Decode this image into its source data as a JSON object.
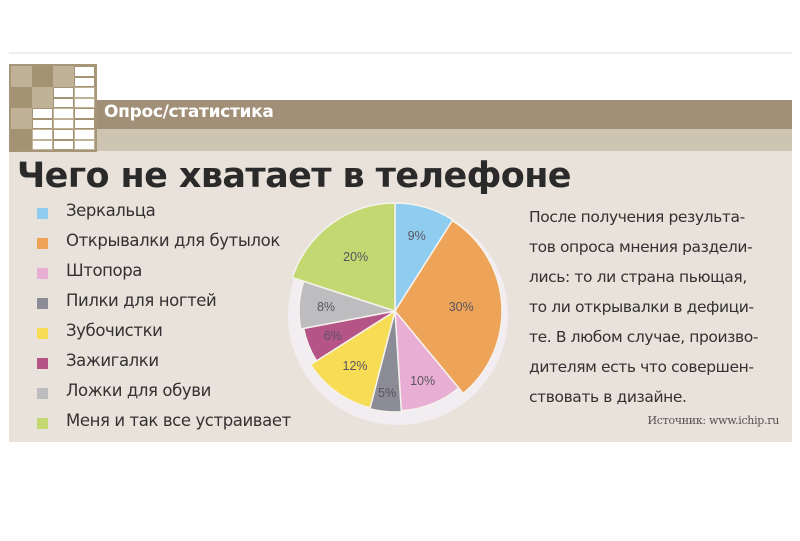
{
  "header": {
    "section_label": "Опрос/статистика",
    "title": "Чего не хватает в телефоне"
  },
  "colors": {
    "band_dark": "#a19077",
    "band_light": "#cdc4b2",
    "panel_bg": "#e8e2da",
    "logo_bg": "#a69677"
  },
  "legend": [
    {
      "label": "Зеркальца",
      "color": "#8fcdf0"
    },
    {
      "label": "Открывалки для бутылок",
      "color": "#eda458"
    },
    {
      "label": "Штопора",
      "color": "#e8aed4"
    },
    {
      "label": "Пилки для ногтей",
      "color": "#8b8c96"
    },
    {
      "label": "Зубочистки",
      "color": "#f7dc55"
    },
    {
      "label": "Зажигалки",
      "color": "#b55486"
    },
    {
      "label": "Ложки для обуви",
      "color": "#bdbdbf"
    },
    {
      "label": "Меня и так все устраивает",
      "color": "#c3d871"
    }
  ],
  "note": {
    "lines": [
      "После получения результа-",
      "тов опроса мнения раздели-",
      "лись: то ли страна пьющая,",
      "то ли открывалки в дефици-",
      "те. В любом случае, произво-",
      "дителям есть что совершен-",
      "ствовать в дизайне."
    ]
  },
  "source": "Источник: www.ichip.ru",
  "chart_data": {
    "type": "pie",
    "title": "Чего не хватает в телефоне",
    "categories": [
      "Зеркальца",
      "Открывалки для бутылок",
      "Штопора",
      "Пилки для ногтей",
      "Зубочистки",
      "Зажигалки",
      "Ложки для обуви",
      "Меня и так все устраивает"
    ],
    "values": [
      9,
      30,
      10,
      5,
      12,
      6,
      8,
      20
    ],
    "labels": [
      "9%",
      "30%",
      "10%",
      "5%",
      "12%",
      "6%",
      "8%",
      "20%"
    ],
    "colors": [
      "#8fcdf0",
      "#eda458",
      "#e8aed4",
      "#8b8c96",
      "#f7dc55",
      "#b55486",
      "#bdbdbf",
      "#c3d871"
    ],
    "start_angle": "12 o'clock, clockwise",
    "legend_position": "left"
  }
}
